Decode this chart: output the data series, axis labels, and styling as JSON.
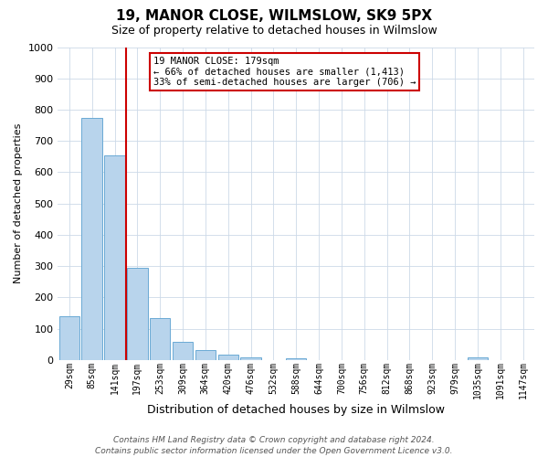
{
  "title": "19, MANOR CLOSE, WILMSLOW, SK9 5PX",
  "subtitle": "Size of property relative to detached houses in Wilmslow",
  "xlabel": "Distribution of detached houses by size in Wilmslow",
  "ylabel": "Number of detached properties",
  "bin_labels": [
    "29sqm",
    "85sqm",
    "141sqm",
    "197sqm",
    "253sqm",
    "309sqm",
    "364sqm",
    "420sqm",
    "476sqm",
    "532sqm",
    "588sqm",
    "644sqm",
    "700sqm",
    "756sqm",
    "812sqm",
    "868sqm",
    "923sqm",
    "979sqm",
    "1035sqm",
    "1091sqm",
    "1147sqm"
  ],
  "bar_values": [
    140,
    775,
    655,
    295,
    135,
    57,
    32,
    18,
    8,
    0,
    7,
    0,
    0,
    0,
    0,
    0,
    0,
    0,
    10,
    0,
    0
  ],
  "bar_color": "#b8d4ec",
  "bar_edge_color": "#6aaad4",
  "marker_line_color": "#cc0000",
  "ylim": [
    0,
    1000
  ],
  "yticks": [
    0,
    100,
    200,
    300,
    400,
    500,
    600,
    700,
    800,
    900,
    1000
  ],
  "annotation_title": "19 MANOR CLOSE: 179sqm",
  "annotation_line1": "← 66% of detached houses are smaller (1,413)",
  "annotation_line2": "33% of semi-detached houses are larger (706) →",
  "annotation_box_color": "#ffffff",
  "annotation_box_edge": "#cc0000",
  "footer1": "Contains HM Land Registry data © Crown copyright and database right 2024.",
  "footer2": "Contains public sector information licensed under the Open Government Licence v3.0.",
  "background_color": "#ffffff",
  "grid_color": "#ccd9e8",
  "title_fontsize": 11,
  "subtitle_fontsize": 9,
  "xlabel_fontsize": 9,
  "ylabel_fontsize": 8,
  "tick_fontsize": 7,
  "footer_fontsize": 6.5
}
